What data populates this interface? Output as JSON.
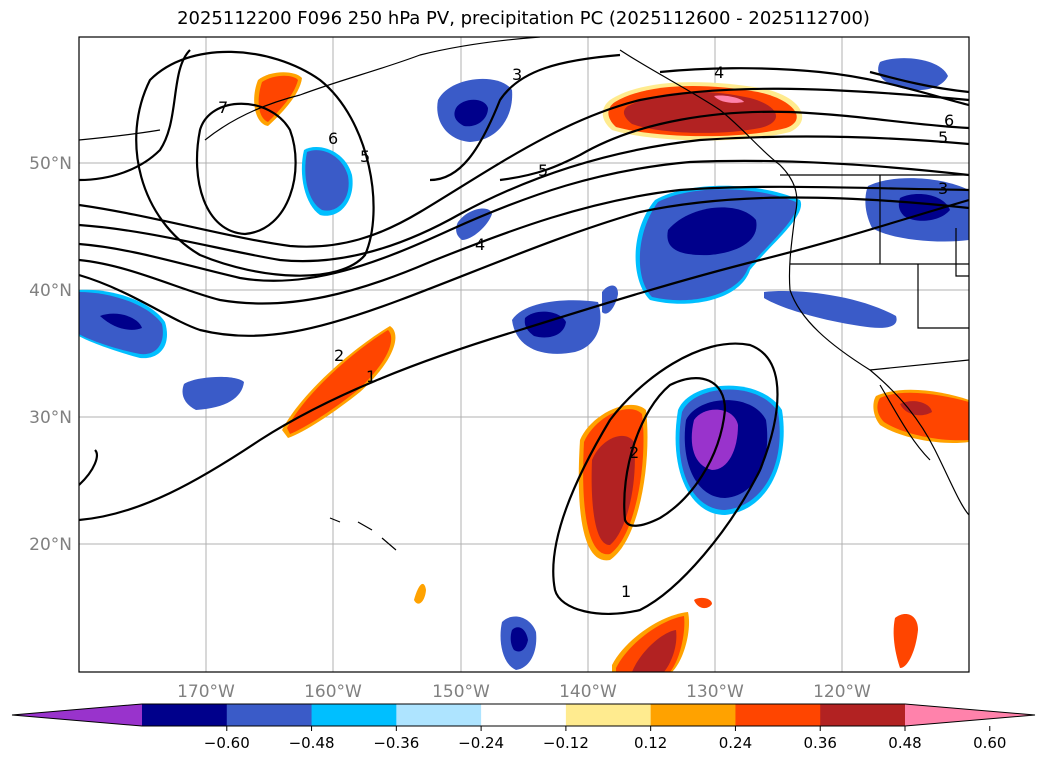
{
  "title": "2025112200 F096 250 hPa PV, precipitation PC (2025112600 - 2025112700)",
  "lat_labels": [
    "50°N",
    "40°N",
    "30°N",
    "20°N"
  ],
  "lon_labels": [
    "170°W",
    "160°W",
    "150°W",
    "140°W",
    "130°W",
    "120°W"
  ],
  "colorbar": {
    "colors": [
      "#9933cc",
      "#00008b",
      "#3a5bc8",
      "#00bfff",
      "#aee4ff",
      "#ffffff",
      "#ffeb8f",
      "#ffa200",
      "#ff4500",
      "#b22222",
      "#ff82ab"
    ],
    "tick_labels": [
      "−0.60",
      "−0.48",
      "−0.36",
      "−0.24",
      "−0.12",
      "0.12",
      "0.24",
      "0.36",
      "0.48",
      "0.60"
    ]
  },
  "contour_labels": [
    "1",
    "2",
    "3",
    "4",
    "5",
    "6",
    "7"
  ],
  "colors": {
    "negative_dark": "#00008b",
    "negative_mid": "#3a5bc8",
    "negative_light": "#00bfff",
    "negative_extreme": "#9933cc",
    "positive_mid": "#ff4500",
    "positive_dark": "#b22222",
    "positive_extreme": "#ff82ab",
    "positive_light": "#ffa200"
  }
}
